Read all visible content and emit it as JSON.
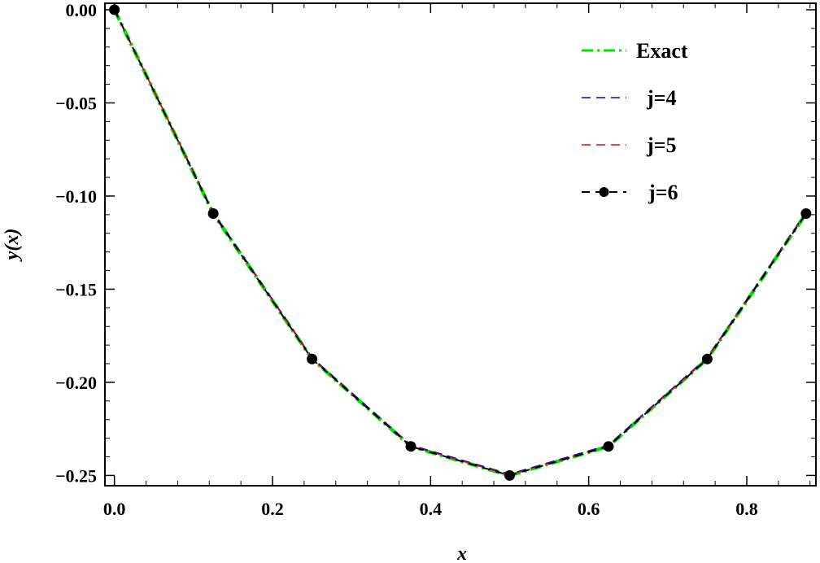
{
  "chart_data": {
    "type": "line",
    "xlabel": "x",
    "ylabel": "y(x)",
    "xlim": [
      -0.012,
      0.8875
    ],
    "ylim": [
      -0.2555,
      0.0035
    ],
    "xticks": [
      0.0,
      0.2,
      0.4,
      0.6,
      0.8
    ],
    "xtick_labels": [
      "0.0",
      "0.2",
      "0.4",
      "0.6",
      "0.8"
    ],
    "yticks": [
      0.0,
      -0.05,
      -0.1,
      -0.15,
      -0.2,
      -0.25
    ],
    "ytick_labels": [
      "0.00",
      "−0.05",
      "−0.10",
      "−0.15",
      "−0.20",
      "−0.25"
    ],
    "legend_position": "top-right",
    "grid": false,
    "series": [
      {
        "name": "Exact",
        "color": "#00e600",
        "style": "dot-dash",
        "x": [
          0.0,
          0.125,
          0.25,
          0.375,
          0.5,
          0.625,
          0.75,
          0.875
        ],
        "y": [
          0.0,
          -0.1094,
          -0.1875,
          -0.2344,
          -0.25,
          -0.2344,
          -0.1875,
          -0.1094
        ]
      },
      {
        "name": "j=4",
        "color": "#0000dd",
        "style": "dashed",
        "x": [
          0.0,
          0.125,
          0.25,
          0.375,
          0.5,
          0.625,
          0.75,
          0.875
        ],
        "y": [
          0.0,
          -0.1087,
          -0.1868,
          -0.2337,
          -0.2493,
          -0.2337,
          -0.1868,
          -0.1087
        ]
      },
      {
        "name": "j=5",
        "color": "#ff0000",
        "style": "dashed",
        "x": [
          0.0,
          0.125,
          0.25,
          0.375,
          0.5,
          0.625,
          0.75,
          0.875
        ],
        "y": [
          0.0,
          -0.1092,
          -0.1873,
          -0.2342,
          -0.2498,
          -0.2342,
          -0.1873,
          -0.1092
        ]
      },
      {
        "name": "j=6",
        "color": "#000000",
        "style": "dashed-markers",
        "x": [
          0.0,
          0.125,
          0.25,
          0.375,
          0.5,
          0.625,
          0.75,
          0.875
        ],
        "y": [
          0.0,
          -0.1094,
          -0.1875,
          -0.2344,
          -0.25,
          -0.2344,
          -0.1875,
          -0.1094
        ]
      }
    ]
  }
}
